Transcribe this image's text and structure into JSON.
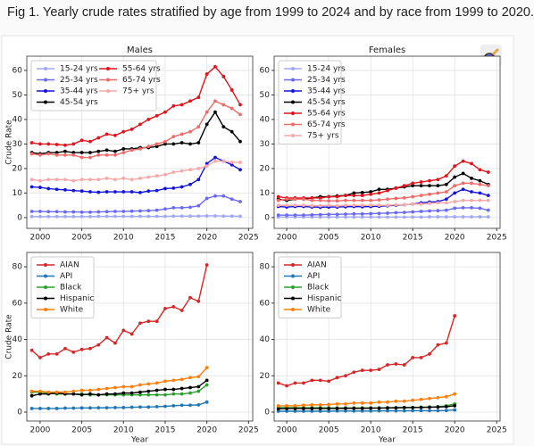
{
  "caption": "Fig 1. Yearly crude rates stratified by age from 1999 to 2024 and by race from 1999 to 2020.",
  "chart_data": [
    {
      "type": "line",
      "title": "Males",
      "ylabel": "Crude Rate",
      "x": [
        1999,
        2000,
        2001,
        2002,
        2003,
        2004,
        2005,
        2006,
        2007,
        2008,
        2009,
        2010,
        2011,
        2012,
        2013,
        2014,
        2015,
        2016,
        2017,
        2018,
        2019,
        2020,
        2021,
        2022,
        2023,
        2024
      ],
      "xlim": [
        1998.4,
        2025.5
      ],
      "xticks": [
        2000,
        2005,
        2010,
        2015,
        2020,
        2025
      ],
      "ylim": [
        -4.4,
        65.8
      ],
      "yticks": [
        0,
        10,
        20,
        30,
        40,
        50,
        60
      ],
      "grid": true,
      "legend": "upper left",
      "legend_ncol": 2,
      "series": [
        {
          "name": "15-24 yrs",
          "color": "#a3a8f5",
          "values": [
            0.4,
            0.4,
            0.4,
            0.4,
            0.4,
            0.4,
            0.4,
            0.4,
            0.5,
            0.5,
            0.5,
            0.5,
            0.5,
            0.5,
            0.5,
            0.5,
            0.5,
            0.6,
            0.6,
            0.6,
            0.6,
            0.7,
            0.7,
            0.6,
            0.6,
            0.5
          ]
        },
        {
          "name": "25-34 yrs",
          "color": "#6a6af0",
          "values": [
            2.5,
            2.5,
            2.4,
            2.4,
            2.3,
            2.3,
            2.2,
            2.2,
            2.3,
            2.4,
            2.5,
            2.5,
            2.6,
            2.7,
            2.8,
            3,
            3.5,
            4,
            4,
            4.2,
            4.8,
            7.8,
            8.8,
            8.8,
            7.5,
            6.5
          ]
        },
        {
          "name": "35-44 yrs",
          "color": "#1414dc",
          "values": [
            12.5,
            12.3,
            11.8,
            11.5,
            11.3,
            11,
            10.8,
            10.5,
            10.3,
            10.5,
            10.5,
            10.5,
            10.5,
            10.2,
            10.8,
            11,
            11.8,
            12,
            12.5,
            13.5,
            15.5,
            22,
            24.5,
            23,
            21.5,
            19.5
          ]
        },
        {
          "name": "45-54 yrs",
          "color": "#000000",
          "values": [
            26.5,
            26,
            26.5,
            26.5,
            27,
            26.5,
            26.5,
            26.5,
            27,
            27.5,
            27,
            28,
            28,
            28.5,
            28.5,
            29,
            30,
            30,
            30.5,
            30,
            30.5,
            38,
            43,
            37,
            35,
            31
          ]
        },
        {
          "name": "55-64 yrs",
          "color": "#e0141c",
          "values": [
            30.5,
            30,
            30,
            29.8,
            29.5,
            30,
            31.5,
            31,
            32.5,
            34,
            33.5,
            35,
            36,
            38,
            40,
            41.5,
            43,
            45.5,
            46,
            47.5,
            49,
            58.5,
            61.5,
            57.5,
            52,
            46
          ]
        },
        {
          "name": "65-74 yrs",
          "color": "#f06a6a",
          "values": [
            26,
            25.5,
            26,
            25.5,
            25.5,
            25.5,
            24.5,
            24.5,
            25.5,
            25.5,
            25.5,
            26.5,
            27.5,
            28,
            29,
            30,
            31,
            33,
            34,
            35,
            37,
            43,
            47.5,
            46,
            44.5,
            42
          ]
        },
        {
          "name": "75+ yrs",
          "color": "#f7a8a8",
          "values": [
            15.5,
            15,
            15.5,
            15.5,
            15.5,
            15,
            15.5,
            15.5,
            15.5,
            16,
            15.5,
            16,
            15.5,
            16,
            16.5,
            17,
            17.5,
            18.5,
            19,
            19.5,
            20,
            21,
            23,
            23,
            22.5,
            22.5
          ]
        }
      ]
    },
    {
      "type": "line",
      "title": "Females",
      "x": [
        1999,
        2000,
        2001,
        2002,
        2003,
        2004,
        2005,
        2006,
        2007,
        2008,
        2009,
        2010,
        2011,
        2012,
        2013,
        2014,
        2015,
        2016,
        2017,
        2018,
        2019,
        2020,
        2021,
        2022,
        2023,
        2024
      ],
      "xlim": [
        1998.5,
        2025.4
      ],
      "xticks": [
        2000,
        2005,
        2010,
        2015,
        2020,
        2025
      ],
      "ylim": [
        -4.4,
        65.8
      ],
      "yticks": [
        0,
        10,
        20,
        30,
        40,
        50,
        60
      ],
      "grid": true,
      "legend": "upper left",
      "legend_ncol": 1,
      "series": [
        {
          "name": "15-24 yrs",
          "color": "#a3a8f5",
          "values": [
            0.2,
            0.2,
            0.2,
            0.2,
            0.2,
            0.2,
            0.2,
            0.2,
            0.2,
            0.2,
            0.2,
            0.2,
            0.2,
            0.2,
            0.2,
            0.2,
            0.2,
            0.2,
            0.3,
            0.3,
            0.3,
            0.3,
            0.3,
            0.3,
            0.3,
            0.3
          ]
        },
        {
          "name": "25-34 yrs",
          "color": "#6a6af0",
          "values": [
            1,
            1,
            1,
            1,
            1.1,
            1.2,
            1.3,
            1.3,
            1.4,
            1.5,
            1.5,
            1.6,
            1.7,
            1.8,
            2,
            2.1,
            2.3,
            2.5,
            2.7,
            2.8,
            3,
            3.8,
            4,
            4,
            3.8,
            3
          ]
        },
        {
          "name": "35-44 yrs",
          "color": "#1414dc",
          "values": [
            4.5,
            4.3,
            4.5,
            4.5,
            4.3,
            4.2,
            4.3,
            4.3,
            4.4,
            4.5,
            4.4,
            4.5,
            4.6,
            4.8,
            5,
            5.2,
            5.5,
            6,
            6.3,
            6.5,
            7.5,
            10,
            11.5,
            10.5,
            10,
            9
          ]
        },
        {
          "name": "45-54 yrs",
          "color": "#000000",
          "values": [
            7.5,
            7,
            7.5,
            7.5,
            8,
            8.5,
            8.5,
            8.8,
            9,
            10,
            10.2,
            10.5,
            11.5,
            11.5,
            12,
            12.5,
            13,
            13,
            13,
            13,
            13.5,
            16.5,
            18,
            16,
            15,
            13.5
          ]
        },
        {
          "name": "55-64 yrs",
          "color": "#e0141c",
          "values": [
            8.5,
            8,
            8,
            8,
            8,
            8,
            8.5,
            8.5,
            9,
            9,
            9,
            9.5,
            10,
            11,
            12,
            13,
            14,
            14.5,
            15,
            15.5,
            17,
            21,
            23,
            22,
            19.5,
            18.5
          ]
        },
        {
          "name": "65-74 yrs",
          "color": "#f06a6a",
          "values": [
            7,
            7.5,
            7.5,
            7.5,
            7,
            7,
            6.8,
            6.8,
            7,
            7,
            7,
            7,
            7.2,
            7.5,
            7.8,
            8,
            8.5,
            9,
            9.5,
            10,
            10.5,
            13,
            14,
            14,
            13.5,
            13
          ]
        },
        {
          "name": "75+ yrs",
          "color": "#f7a8a8",
          "values": [
            5,
            5,
            5,
            5,
            4.8,
            4.8,
            5,
            4.8,
            5,
            5,
            5,
            5,
            5,
            5,
            5.2,
            5.2,
            5.5,
            5.5,
            5.8,
            6,
            6,
            6.5,
            7,
            7,
            7,
            7
          ]
        }
      ]
    },
    {
      "type": "line",
      "ylabel": "Crude Rate",
      "xlabel": "Year",
      "x": [
        1999,
        2000,
        2001,
        2002,
        2003,
        2004,
        2005,
        2006,
        2007,
        2008,
        2009,
        2010,
        2011,
        2012,
        2013,
        2014,
        2015,
        2016,
        2017,
        2018,
        2019,
        2020
      ],
      "xlim": [
        1998.4,
        2025.5
      ],
      "xticks": [
        2000,
        2005,
        2010,
        2015,
        2020,
        2025
      ],
      "ylim": [
        -4.9,
        87.9
      ],
      "yticks": [
        0,
        20,
        40,
        60,
        80
      ],
      "grid": true,
      "legend": "upper left",
      "legend_ncol": 1,
      "series": [
        {
          "name": "AIAN",
          "color": "#d62728",
          "values": [
            34,
            30,
            32,
            32,
            35,
            33,
            34.5,
            35,
            37,
            41,
            38,
            45,
            43,
            49,
            50,
            50,
            57,
            58,
            56,
            63,
            61,
            81
          ]
        },
        {
          "name": "API",
          "color": "#1f77b4",
          "values": [
            2,
            2,
            2,
            2,
            2.2,
            2.2,
            2.3,
            2.3,
            2.4,
            2.4,
            2.5,
            2.5,
            2.7,
            2.8,
            2.8,
            3,
            3.2,
            3.5,
            3.8,
            3.8,
            4,
            5.5
          ]
        },
        {
          "name": "Black",
          "color": "#2ca02c",
          "values": [
            11,
            11,
            10.5,
            10,
            10,
            10,
            10,
            9.5,
            9.5,
            9.5,
            9.5,
            9.5,
            9.5,
            9.5,
            9.5,
            9.5,
            9.5,
            10,
            10,
            10.5,
            11.5,
            15
          ]
        },
        {
          "name": "Hispanic",
          "color": "#000000",
          "values": [
            9,
            10,
            10,
            10.5,
            10,
            10,
            9.5,
            10,
            9.5,
            10,
            10,
            10.5,
            10.5,
            11,
            11.5,
            12,
            12.5,
            12.5,
            13,
            13.5,
            14,
            17.5
          ]
        },
        {
          "name": "White",
          "color": "#ff7f0e",
          "values": [
            11.5,
            11.5,
            11,
            11,
            11,
            11.5,
            12,
            12,
            12.5,
            13,
            13.5,
            14,
            14,
            15,
            15.5,
            16,
            17,
            17.5,
            18,
            19,
            19.5,
            24.5
          ]
        }
      ]
    },
    {
      "type": "line",
      "xlabel": "Year",
      "x": [
        1999,
        2000,
        2001,
        2002,
        2003,
        2004,
        2005,
        2006,
        2007,
        2008,
        2009,
        2010,
        2011,
        2012,
        2013,
        2014,
        2015,
        2016,
        2017,
        2018,
        2019,
        2020
      ],
      "xlim": [
        1998.5,
        2025.4
      ],
      "xticks": [
        2000,
        2005,
        2010,
        2015,
        2020,
        2025
      ],
      "ylim": [
        -4.9,
        87.9
      ],
      "yticks": [
        0,
        20,
        40,
        60,
        80
      ],
      "grid": true,
      "legend": "upper left",
      "legend_ncol": 1,
      "series": [
        {
          "name": "AIAN",
          "color": "#d62728",
          "values": [
            16,
            14.5,
            16,
            16,
            17.5,
            17.5,
            17,
            19,
            20,
            22,
            23,
            23,
            23.5,
            26,
            26.5,
            26,
            30,
            30,
            32,
            37,
            38,
            53
          ]
        },
        {
          "name": "API",
          "color": "#1f77b4",
          "values": [
            0.5,
            0.5,
            0.5,
            0.5,
            0.5,
            0.5,
            0.5,
            0.6,
            0.6,
            0.6,
            0.6,
            0.6,
            0.7,
            0.7,
            0.7,
            0.7,
            0.8,
            0.8,
            0.8,
            0.8,
            0.9,
            1.2
          ]
        },
        {
          "name": "Black",
          "color": "#2ca02c",
          "values": [
            2.5,
            2.5,
            2.5,
            2.4,
            2.4,
            2.4,
            2.3,
            2.3,
            2.3,
            2.3,
            2.3,
            2.3,
            2.3,
            2.4,
            2.4,
            2.5,
            2.6,
            2.7,
            2.8,
            3,
            3.5,
            4.5
          ]
        },
        {
          "name": "Hispanic",
          "color": "#000000",
          "values": [
            1.8,
            2,
            2,
            2,
            2,
            2,
            2,
            2,
            2.1,
            2.1,
            2.1,
            2.2,
            2.2,
            2.3,
            2.4,
            2.5,
            2.5,
            2.6,
            2.7,
            2.8,
            3,
            3.5
          ]
        },
        {
          "name": "White",
          "color": "#ff7f0e",
          "values": [
            3.5,
            3.5,
            3.5,
            3.8,
            4,
            4,
            4.2,
            4.5,
            4.5,
            5,
            5,
            5,
            5.5,
            5.5,
            6,
            6,
            6.5,
            7,
            7.5,
            8,
            8.5,
            10
          ]
        }
      ]
    }
  ]
}
